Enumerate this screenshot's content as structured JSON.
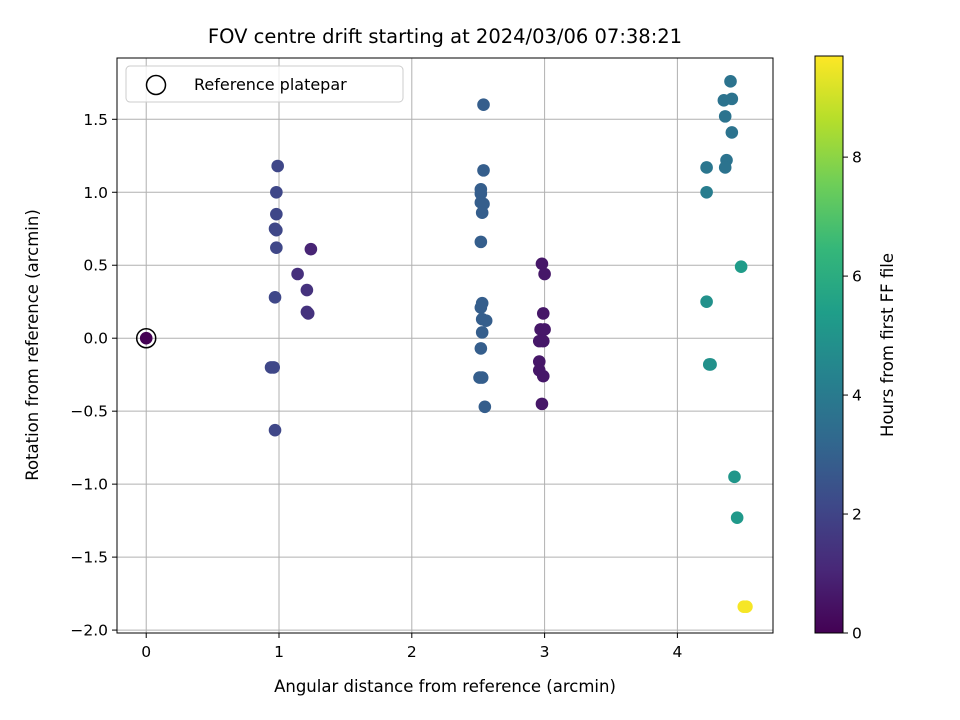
{
  "chart_data": {
    "type": "scatter",
    "title": "FOV centre drift starting at 2024/03/06 07:38:21",
    "xlabel": "Angular distance from reference (arcmin)",
    "ylabel": "Rotation from reference (arcmin)",
    "xlim": [
      -0.22,
      4.72
    ],
    "ylim": [
      -2.02,
      1.92
    ],
    "xticks": [
      0,
      1,
      2,
      3,
      4
    ],
    "yticks": [
      -2.0,
      -1.5,
      -1.0,
      -0.5,
      0.0,
      0.5,
      1.0,
      1.5
    ],
    "xtick_labels": [
      "0",
      "1",
      "2",
      "3",
      "4"
    ],
    "ytick_labels": [
      "−2.0",
      "−1.5",
      "−1.0",
      "−0.5",
      "0.0",
      "0.5",
      "1.0",
      "1.5"
    ],
    "grid": true,
    "legend": {
      "placement": "top-left",
      "entries": [
        "Reference platepar"
      ]
    },
    "reference_point": {
      "x": 0,
      "y": 0,
      "hours": 0
    },
    "colorbar": {
      "label": "Hours from first FF file",
      "range": [
        0,
        9.7
      ],
      "ticks": [
        0,
        2,
        4,
        6,
        8
      ],
      "tick_labels": [
        "0",
        "2",
        "4",
        "6",
        "8"
      ],
      "colormap": [
        "#440154",
        "#482878",
        "#3e4989",
        "#31688e",
        "#26828e",
        "#1f9e89",
        "#35b779",
        "#6ece58",
        "#b5de2b",
        "#fde725"
      ]
    },
    "points": [
      {
        "x": 0.0,
        "y": 0.0,
        "hours": 0.0
      },
      {
        "x": 2.98,
        "y": 0.51,
        "hours": 0.6
      },
      {
        "x": 3.0,
        "y": 0.44,
        "hours": 0.6
      },
      {
        "x": 2.99,
        "y": 0.17,
        "hours": 0.6
      },
      {
        "x": 2.97,
        "y": 0.06,
        "hours": 0.6
      },
      {
        "x": 3.0,
        "y": 0.06,
        "hours": 0.6
      },
      {
        "x": 2.96,
        "y": -0.02,
        "hours": 0.6
      },
      {
        "x": 2.99,
        "y": -0.02,
        "hours": 0.6
      },
      {
        "x": 2.96,
        "y": -0.16,
        "hours": 0.6
      },
      {
        "x": 2.96,
        "y": -0.22,
        "hours": 0.6
      },
      {
        "x": 2.99,
        "y": -0.26,
        "hours": 0.6
      },
      {
        "x": 2.98,
        "y": -0.45,
        "hours": 0.6
      },
      {
        "x": 1.24,
        "y": 0.61,
        "hours": 1.0
      },
      {
        "x": 1.14,
        "y": 0.44,
        "hours": 1.3
      },
      {
        "x": 1.21,
        "y": 0.33,
        "hours": 1.4
      },
      {
        "x": 1.21,
        "y": 0.18,
        "hours": 1.4
      },
      {
        "x": 1.22,
        "y": 0.17,
        "hours": 1.4
      },
      {
        "x": 0.99,
        "y": 1.18,
        "hours": 2.1
      },
      {
        "x": 0.98,
        "y": 1.0,
        "hours": 2.1
      },
      {
        "x": 0.98,
        "y": 0.85,
        "hours": 2.1
      },
      {
        "x": 0.97,
        "y": 0.75,
        "hours": 2.1
      },
      {
        "x": 0.98,
        "y": 0.74,
        "hours": 2.1
      },
      {
        "x": 0.98,
        "y": 0.62,
        "hours": 2.1
      },
      {
        "x": 0.97,
        "y": 0.28,
        "hours": 2.1
      },
      {
        "x": 0.94,
        "y": -0.2,
        "hours": 2.1
      },
      {
        "x": 0.96,
        "y": -0.2,
        "hours": 2.1
      },
      {
        "x": 0.97,
        "y": -0.63,
        "hours": 2.1
      },
      {
        "x": 2.54,
        "y": 1.6,
        "hours": 2.9
      },
      {
        "x": 2.54,
        "y": 1.15,
        "hours": 2.9
      },
      {
        "x": 2.52,
        "y": 1.02,
        "hours": 2.9
      },
      {
        "x": 2.52,
        "y": 0.99,
        "hours": 2.9
      },
      {
        "x": 2.52,
        "y": 0.93,
        "hours": 2.9
      },
      {
        "x": 2.54,
        "y": 0.92,
        "hours": 2.9
      },
      {
        "x": 2.53,
        "y": 0.86,
        "hours": 2.9
      },
      {
        "x": 2.52,
        "y": 0.66,
        "hours": 2.9
      },
      {
        "x": 2.53,
        "y": 0.24,
        "hours": 2.9
      },
      {
        "x": 2.52,
        "y": 0.21,
        "hours": 2.9
      },
      {
        "x": 2.53,
        "y": 0.13,
        "hours": 2.9
      },
      {
        "x": 2.56,
        "y": 0.12,
        "hours": 2.9
      },
      {
        "x": 2.53,
        "y": 0.04,
        "hours": 2.9
      },
      {
        "x": 2.52,
        "y": -0.07,
        "hours": 2.9
      },
      {
        "x": 2.51,
        "y": -0.27,
        "hours": 2.9
      },
      {
        "x": 2.53,
        "y": -0.27,
        "hours": 2.9
      },
      {
        "x": 2.55,
        "y": -0.47,
        "hours": 2.9
      },
      {
        "x": 4.4,
        "y": 1.76,
        "hours": 3.7
      },
      {
        "x": 4.35,
        "y": 1.63,
        "hours": 3.7
      },
      {
        "x": 4.41,
        "y": 1.64,
        "hours": 3.7
      },
      {
        "x": 4.36,
        "y": 1.52,
        "hours": 3.7
      },
      {
        "x": 4.41,
        "y": 1.41,
        "hours": 3.7
      },
      {
        "x": 4.37,
        "y": 1.22,
        "hours": 3.7
      },
      {
        "x": 4.36,
        "y": 1.17,
        "hours": 3.7
      },
      {
        "x": 4.22,
        "y": 1.17,
        "hours": 3.8
      },
      {
        "x": 4.22,
        "y": 1.0,
        "hours": 4.1
      },
      {
        "x": 4.48,
        "y": 0.49,
        "hours": 5.3
      },
      {
        "x": 4.22,
        "y": 0.25,
        "hours": 4.9
      },
      {
        "x": 4.24,
        "y": -0.18,
        "hours": 4.9
      },
      {
        "x": 4.25,
        "y": -0.18,
        "hours": 4.9
      },
      {
        "x": 4.43,
        "y": -0.95,
        "hours": 5.1
      },
      {
        "x": 4.45,
        "y": -1.23,
        "hours": 5.2
      },
      {
        "x": 4.5,
        "y": -1.84,
        "hours": 9.6
      },
      {
        "x": 4.52,
        "y": -1.84,
        "hours": 9.6
      }
    ]
  }
}
